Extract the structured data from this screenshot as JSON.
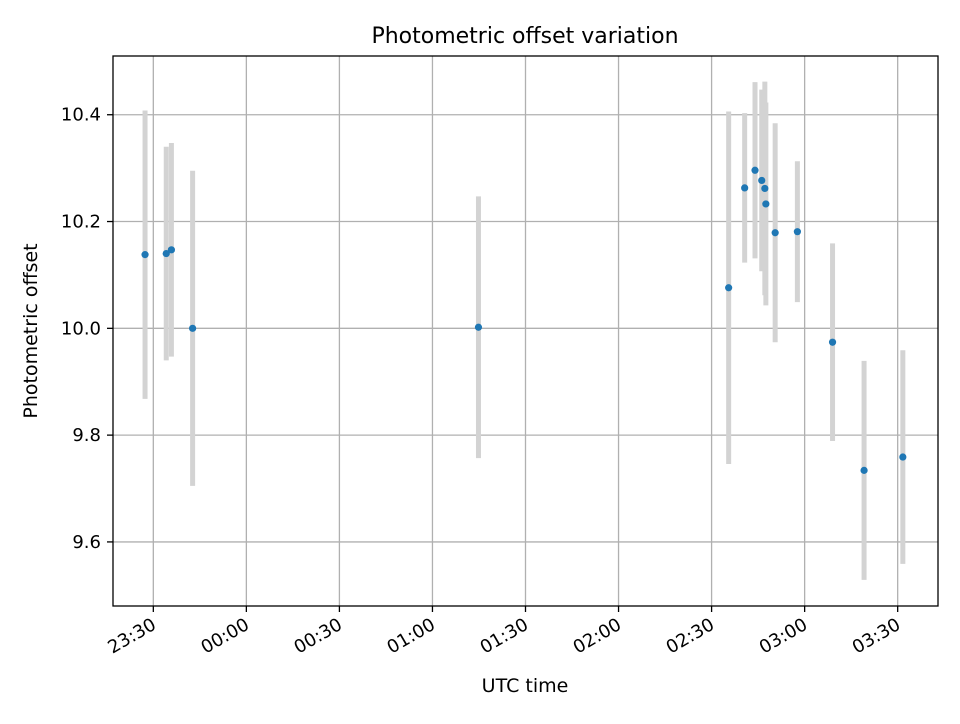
{
  "chart_data": {
    "type": "scatter",
    "title": "Photometric offset variation",
    "xlabel": "UTC time",
    "ylabel": "Photometric offset",
    "x_ticks": [
      "23:30",
      "00:00",
      "00:30",
      "01:00",
      "01:30",
      "02:00",
      "02:30",
      "03:00",
      "03:30"
    ],
    "y_ticks": [
      9.6,
      9.8,
      10.0,
      10.2,
      10.4
    ],
    "xlim": [
      "23:17",
      "03:43"
    ],
    "ylim": [
      9.48,
      10.51
    ],
    "grid": true,
    "legend": "none",
    "marker_color": "#1f77b4",
    "errorbar_color": "#d3d3d3",
    "points": [
      {
        "x": "23:27:20",
        "y": 10.138,
        "err": 0.27
      },
      {
        "x": "23:34:10",
        "y": 10.14,
        "err": 0.2
      },
      {
        "x": "23:35:50",
        "y": 10.147,
        "err": 0.2
      },
      {
        "x": "23:42:40",
        "y": 10.0,
        "err": 0.295
      },
      {
        "x": "01:14:50",
        "y": 10.002,
        "err": 0.245
      },
      {
        "x": "02:35:30",
        "y": 10.076,
        "err": 0.33
      },
      {
        "x": "02:40:40",
        "y": 10.263,
        "err": 0.14
      },
      {
        "x": "02:44:00",
        "y": 10.296,
        "err": 0.165
      },
      {
        "x": "02:46:10",
        "y": 10.277,
        "err": 0.17
      },
      {
        "x": "02:47:10",
        "y": 10.262,
        "err": 0.2
      },
      {
        "x": "02:47:30",
        "y": 10.233,
        "err": 0.19
      },
      {
        "x": "02:50:30",
        "y": 10.179,
        "err": 0.205
      },
      {
        "x": "02:57:40",
        "y": 10.181,
        "err": 0.132
      },
      {
        "x": "03:09:00",
        "y": 9.974,
        "err": 0.185
      },
      {
        "x": "03:19:10",
        "y": 9.734,
        "err": 0.205
      },
      {
        "x": "03:31:40",
        "y": 9.759,
        "err": 0.2
      }
    ]
  }
}
